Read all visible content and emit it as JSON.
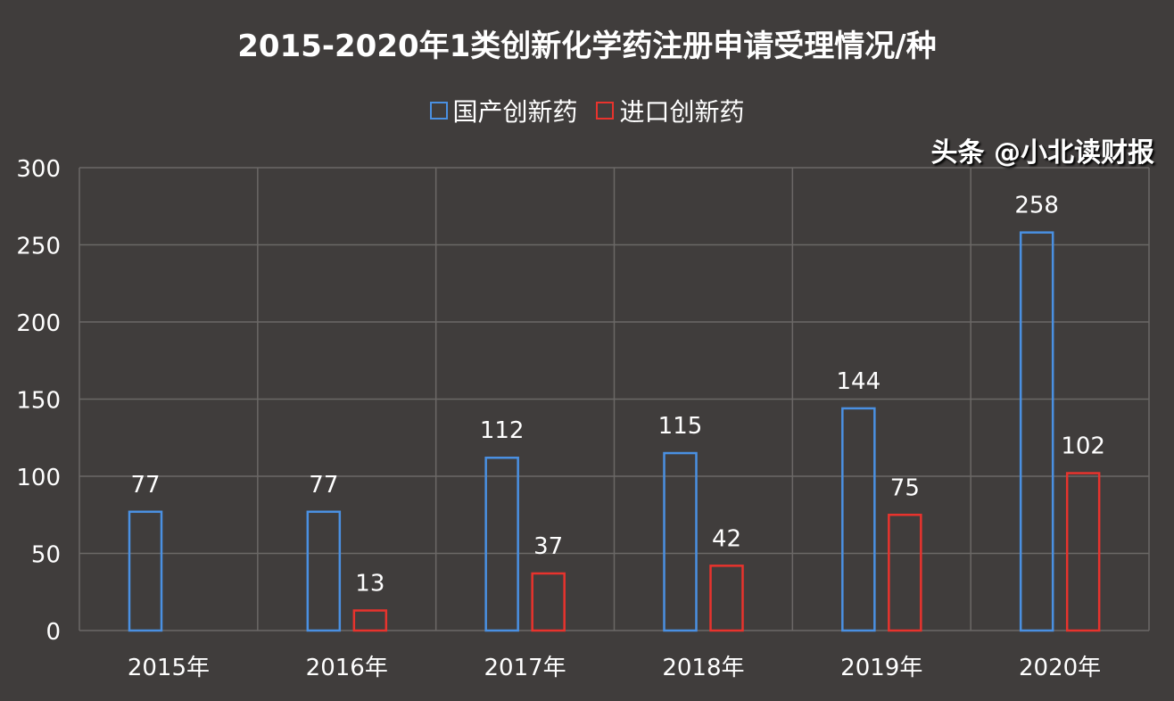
{
  "chart_data": {
    "type": "bar",
    "title": "2015-2020年1类创新化学药注册申请受理情况/种",
    "categories": [
      "2015年",
      "2016年",
      "2017年",
      "2018年",
      "2019年",
      "2020年"
    ],
    "series": [
      {
        "name": "国产创新药",
        "color": "#4a90e2",
        "values": [
          77,
          77,
          112,
          115,
          144,
          258
        ]
      },
      {
        "name": "进口创新药",
        "color": "#e8332d",
        "values": [
          null,
          13,
          37,
          42,
          75,
          102
        ]
      }
    ],
    "ylim": [
      0,
      300
    ],
    "yticks": [
      0,
      50,
      100,
      150,
      200,
      250,
      300
    ],
    "grid": true,
    "legend": "top"
  },
  "watermark": "头条 @小北读财报"
}
